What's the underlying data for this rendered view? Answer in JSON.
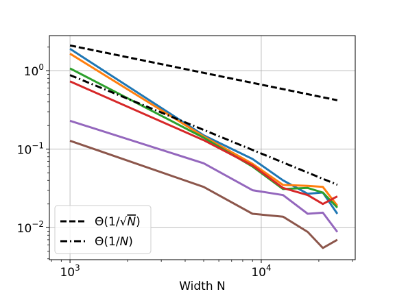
{
  "chart_data": {
    "type": "line",
    "title": "",
    "xlabel": "Width N",
    "ylabel": "",
    "xscale": "log",
    "yscale": "log",
    "xlim": [
      780,
      31000
    ],
    "ylim": [
      0.0039,
      2.8
    ],
    "grid": true,
    "legend_placement": "lower-left",
    "x_ticks": [
      {
        "value": 1000,
        "base": "10",
        "exp": "3"
      },
      {
        "value": 10000,
        "base": "10",
        "exp": "4"
      }
    ],
    "y_ticks": [
      {
        "value": 1,
        "base": "10",
        "exp": "0"
      },
      {
        "value": 0.1,
        "base": "10",
        "exp": "−1"
      },
      {
        "value": 0.01,
        "base": "10",
        "exp": "−2"
      }
    ],
    "series": [
      {
        "name": "",
        "color": "#1f77b4",
        "style": "solid",
        "x": [
          1000,
          5000,
          9000,
          13000,
          17500,
          21000,
          25000
        ],
        "y": [
          1.9,
          0.15,
          0.075,
          0.04,
          0.027,
          0.028,
          0.015
        ]
      },
      {
        "name": "",
        "color": "#ff7f0e",
        "style": "solid",
        "x": [
          1000,
          5000,
          9000,
          13000,
          17500,
          21000,
          25000
        ],
        "y": [
          1.65,
          0.145,
          0.065,
          0.035,
          0.034,
          0.033,
          0.019
        ]
      },
      {
        "name": "",
        "color": "#2ca02c",
        "style": "solid",
        "x": [
          1000,
          5000,
          9000,
          13000,
          17500,
          21000,
          25000
        ],
        "y": [
          1.07,
          0.14,
          0.06,
          0.031,
          0.032,
          0.028,
          0.018
        ]
      },
      {
        "name": "",
        "color": "#d62728",
        "style": "solid",
        "x": [
          1000,
          5000,
          9000,
          13000,
          17500,
          21000,
          25000
        ],
        "y": [
          0.73,
          0.13,
          0.062,
          0.032,
          0.026,
          0.02,
          0.025
        ]
      },
      {
        "name": "",
        "color": "#9467bd",
        "style": "solid",
        "x": [
          1000,
          5000,
          9000,
          13000,
          17500,
          21000,
          25000
        ],
        "y": [
          0.23,
          0.066,
          0.03,
          0.026,
          0.015,
          0.0155,
          0.0088
        ]
      },
      {
        "name": "",
        "color": "#8c564b",
        "style": "solid",
        "x": [
          1000,
          5000,
          9000,
          13000,
          17500,
          21000,
          25000
        ],
        "y": [
          0.128,
          0.033,
          0.015,
          0.0138,
          0.0088,
          0.0055,
          0.007
        ]
      },
      {
        "name": "Θ(1/√N)",
        "color": "#000000",
        "style": "dashed",
        "x": [
          1000,
          25000
        ],
        "y": [
          2.1,
          0.42
        ]
      },
      {
        "name": "Θ(1/N)",
        "color": "#000000",
        "style": "dashdot",
        "x": [
          1000,
          25000
        ],
        "y": [
          0.88,
          0.0352
        ]
      }
    ],
    "legend": [
      {
        "prefix": "Θ(1/",
        "sqrt": "N",
        "suffix": ")",
        "style": "dashed"
      },
      {
        "prefix": "Θ(1/",
        "italic": "N",
        "suffix": ")",
        "style": "dashdot"
      }
    ]
  }
}
